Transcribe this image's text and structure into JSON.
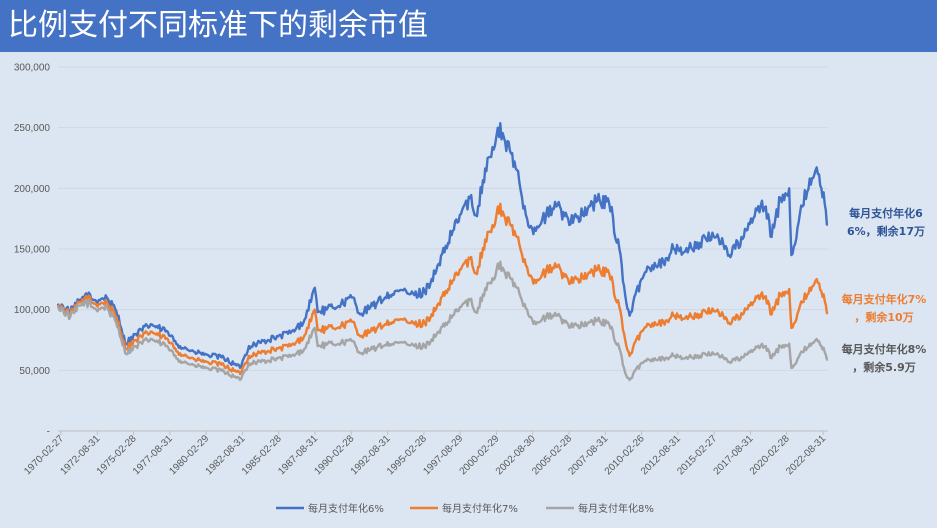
{
  "title": "比例支付不同标准下的剩余市值",
  "chart_data": {
    "type": "line",
    "ylim": [
      0,
      300000
    ],
    "y_ticks": [
      "-",
      "50,000",
      "100,000",
      "150,000",
      "200,000",
      "250,000",
      "300,000"
    ],
    "x_labels": [
      "1970-02-27",
      "1972-08-31",
      "1975-02-28",
      "1977-08-31",
      "1980-02-29",
      "1982-08-31",
      "1985-02-28",
      "1987-08-31",
      "1990-02-28",
      "1992-08-31",
      "1995-02-28",
      "1997-08-29",
      "2000-02-29",
      "2002-08-30",
      "2005-02-28",
      "2007-08-31",
      "2010-02-26",
      "2012-08-31",
      "2015-02-27",
      "2017-08-31",
      "2020-02-28",
      "2022-08-31"
    ],
    "grid": true,
    "legend_position": "bottom",
    "series": [
      {
        "name": "每月支付年化6%",
        "color": "#4472c4",
        "x": [
          1970.16,
          1971.0,
          1972.0,
          1972.7,
          1973.5,
          1974.3,
          1974.75,
          1975.5,
          1976.5,
          1977.5,
          1978.5,
          1979.5,
          1980.3,
          1981.5,
          1982.6,
          1983.2,
          1984.5,
          1985.2,
          1986.3,
          1987.0,
          1987.7,
          1987.9,
          1988.5,
          1989.5,
          1990.3,
          1990.8,
          1991.5,
          1992.5,
          1993.5,
          1994.5,
          1995.2,
          1996.0,
          1996.8,
          1997.6,
          1998.3,
          1998.7,
          1999.5,
          2000.0,
          2000.2,
          2000.7,
          2001.5,
          2002.2,
          2002.8,
          2003.5,
          2004.2,
          2005.0,
          2006.0,
          2007.0,
          2007.8,
          2008.5,
          2008.9,
          2009.2,
          2010.0,
          2010.5,
          2011.5,
          2012.2,
          2013.0,
          2014.0,
          2015.2,
          2016.0,
          2017.0,
          2017.9,
          2018.5,
          2018.9,
          2019.5,
          2020.1,
          2020.25,
          2021.0,
          2021.5,
          2021.9,
          2022.3,
          2022.6,
          2022.75
        ],
        "values": [
          105000,
          98000,
          112000,
          108000,
          110000,
          95000,
          72000,
          80000,
          88000,
          82000,
          70000,
          65000,
          63000,
          60000,
          52000,
          70000,
          75000,
          78000,
          82000,
          92000,
          118000,
          98000,
          100000,
          105000,
          110000,
          96000,
          102000,
          110000,
          116000,
          112000,
          115000,
          132000,
          155000,
          178000,
          192000,
          178000,
          225000,
          235000,
          250000,
          238000,
          215000,
          175000,
          165000,
          178000,
          185000,
          175000,
          178000,
          190000,
          188000,
          150000,
          112000,
          95000,
          125000,
          135000,
          140000,
          150000,
          148000,
          155000,
          162000,
          145000,
          160000,
          182000,
          185000,
          160000,
          192000,
          200000,
          145000,
          185000,
          208000,
          215000,
          200000,
          182000,
          170000
        ]
      },
      {
        "name": "每月支付年化7%",
        "color": "#ed7d31",
        "x": [
          1970.16,
          1971.0,
          1972.0,
          1972.7,
          1973.5,
          1974.3,
          1974.75,
          1975.5,
          1976.5,
          1977.5,
          1978.5,
          1979.5,
          1980.3,
          1981.5,
          1982.6,
          1983.2,
          1984.5,
          1985.2,
          1986.3,
          1987.0,
          1987.7,
          1987.9,
          1988.5,
          1989.5,
          1990.3,
          1990.8,
          1991.5,
          1992.5,
          1993.5,
          1994.5,
          1995.2,
          1996.0,
          1996.8,
          1997.6,
          1998.3,
          1998.7,
          1999.5,
          2000.0,
          2000.2,
          2000.7,
          2001.5,
          2002.2,
          2002.8,
          2003.5,
          2004.2,
          2005.0,
          2006.0,
          2007.0,
          2007.8,
          2008.5,
          2008.9,
          2009.2,
          2010.0,
          2010.5,
          2011.5,
          2012.2,
          2013.0,
          2014.0,
          2015.2,
          2016.0,
          2017.0,
          2017.9,
          2018.5,
          2018.9,
          2019.5,
          2020.1,
          2020.25,
          2021.0,
          2021.5,
          2021.9,
          2022.3,
          2022.6,
          2022.75
        ],
        "values": [
          104000,
          96000,
          110000,
          105000,
          106000,
          90000,
          68000,
          75000,
          82000,
          76000,
          64000,
          59000,
          57000,
          54000,
          47000,
          62000,
          66000,
          68000,
          71000,
          79000,
          100000,
          83000,
          84000,
          87000,
          90000,
          78000,
          82000,
          88000,
          92000,
          88000,
          89000,
          101000,
          117000,
          133000,
          142000,
          130000,
          164000,
          170000,
          185000,
          175000,
          160000,
          135000,
          122000,
          132000,
          135000,
          125000,
          126000,
          133000,
          130000,
          102000,
          75000,
          62000,
          82000,
          88000,
          90000,
          95000,
          93000,
          96000,
          100000,
          89000,
          97000,
          110000,
          111000,
          96000,
          113000,
          117000,
          85000,
          106000,
          118000,
          124000,
          115000,
          104000,
          97000
        ]
      },
      {
        "name": "每月支付年化8%",
        "color": "#a5a5a5",
        "x": [
          1970.16,
          1971.0,
          1972.0,
          1972.7,
          1973.5,
          1974.3,
          1974.75,
          1975.5,
          1976.5,
          1977.5,
          1978.5,
          1979.5,
          1980.3,
          1981.5,
          1982.6,
          1983.2,
          1984.5,
          1985.2,
          1986.3,
          1987.0,
          1987.7,
          1987.9,
          1988.5,
          1989.5,
          1990.3,
          1990.8,
          1991.5,
          1992.5,
          1993.5,
          1994.5,
          1995.2,
          1996.0,
          1996.8,
          1997.6,
          1998.3,
          1998.7,
          1999.5,
          2000.0,
          2000.2,
          2000.7,
          2001.5,
          2002.2,
          2002.8,
          2003.5,
          2004.2,
          2005.0,
          2006.0,
          2007.0,
          2007.8,
          2008.5,
          2008.9,
          2009.2,
          2010.0,
          2010.5,
          2011.5,
          2012.2,
          2013.0,
          2014.0,
          2015.2,
          2016.0,
          2017.0,
          2017.9,
          2018.5,
          2018.9,
          2019.5,
          2020.1,
          2020.25,
          2021.0,
          2021.5,
          2021.9,
          2022.3,
          2022.6,
          2022.75
        ],
        "values": [
          103000,
          94000,
          107000,
          101000,
          102000,
          85000,
          64000,
          70000,
          76000,
          70000,
          58000,
          54000,
          52000,
          49000,
          42000,
          56000,
          58000,
          60000,
          62000,
          68000,
          85000,
          70000,
          71000,
          73000,
          74000,
          64000,
          67000,
          71000,
          73000,
          70000,
          70000,
          79000,
          90000,
          102000,
          108000,
          98000,
          122000,
          126000,
          138000,
          130000,
          118000,
          100000,
          88000,
          94000,
          95000,
          88000,
          87000,
          91000,
          88000,
          68000,
          48000,
          42000,
          56000,
          59000,
          60000,
          62000,
          60000,
          62000,
          64000,
          57000,
          61000,
          69000,
          70000,
          60000,
          70000,
          72000,
          52000,
          65000,
          72000,
          75000,
          70000,
          63000,
          59000
        ]
      }
    ],
    "annotations": [
      {
        "lines": [
          "每月支付年化6",
          "6%，剩余17万"
        ],
        "color": "#2f5597"
      },
      {
        "lines": [
          "每月支付年化7%",
          "，剩余10万"
        ],
        "color": "#ed7d31"
      },
      {
        "lines": [
          "每月支付年化8%",
          "，剩余5.9万"
        ],
        "color": "#595959"
      }
    ]
  }
}
